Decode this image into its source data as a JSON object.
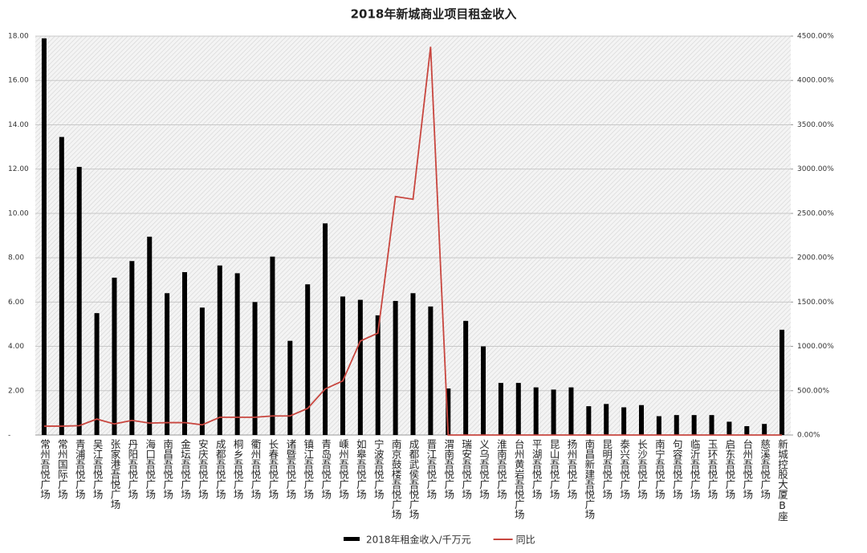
{
  "chart_data": {
    "type": "bar-line",
    "title": "2018年新城商业项目租金收入",
    "categories": [
      "常州吾悦广场",
      "常州国际广场",
      "青浦吾悦广场",
      "吴江吾悦广场",
      "张家港吾悦广场",
      "丹阳吾悦广场",
      "海口吾悦广场",
      "南昌吾悦广场",
      "金坛吾悦广场",
      "安庆吾悦广场",
      "成都吾悦广场",
      "桐乡吾悦广场",
      "衢州吾悦广场",
      "长春吾悦广场",
      "诸暨吾悦广场",
      "镇江吾悦广场",
      "青岛吾悦广场",
      "嵊州吾悦广场",
      "如皋吾悦广场",
      "宁波吾悦广场",
      "南京鼓楼吾悦广场",
      "成都武侯吾悦广场",
      "晋江吾悦广场",
      "渭南吾悦广场",
      "瑞安吾悦广场",
      "义乌吾悦广场",
      "淮南吾悦广场",
      "台州黄岩吾悦广场",
      "平湖吾悦广场",
      "昆山吾悦广场",
      "扬州吾悦广场",
      "南昌新建吾悦广场",
      "昆明吾悦广场",
      "泰兴吾悦广场",
      "长沙吾悦广场",
      "南宁吾悦广场",
      "句容吾悦广场",
      "临沂吾悦广场",
      "玉环吾悦广场",
      "启东吾悦广场",
      "台州吾悦广场",
      "慈溪吾悦广场",
      "新城控股大厦B座"
    ],
    "series": [
      {
        "name": "2018年租金收入/千万元",
        "color": "#000000",
        "kind": "bar",
        "values": [
          17.9,
          13.45,
          12.1,
          5.5,
          7.1,
          7.85,
          8.95,
          6.4,
          7.35,
          5.75,
          7.65,
          7.3,
          6.0,
          8.05,
          4.25,
          6.8,
          9.55,
          6.25,
          6.1,
          5.4,
          6.05,
          6.4,
          5.8,
          2.1,
          5.15,
          4.0,
          2.35,
          2.35,
          2.15,
          2.05,
          2.15,
          1.3,
          1.4,
          1.25,
          1.35,
          0.85,
          0.9,
          0.9,
          0.9,
          0.6,
          0.4,
          0.5,
          4.75
        ]
      },
      {
        "name": "同比",
        "color": "#c8463f",
        "kind": "line",
        "axis": "y2",
        "values": [
          100,
          100,
          105,
          180,
          125,
          165,
          135,
          140,
          140,
          115,
          200,
          200,
          200,
          215,
          215,
          300,
          520,
          610,
          1060,
          1150,
          2690,
          2660,
          4380,
          0,
          0,
          0,
          0,
          0,
          0,
          0,
          0,
          0,
          0,
          0,
          0,
          0,
          0,
          0,
          0,
          0,
          0,
          0,
          0
        ]
      }
    ],
    "ylim": [
      0,
      18
    ],
    "yticks": [
      {
        "value": 0,
        "label": "-"
      },
      {
        "value": 2,
        "label": "2.00"
      },
      {
        "value": 4,
        "label": "4.00"
      },
      {
        "value": 6,
        "label": "6.00"
      },
      {
        "value": 8,
        "label": "8.00"
      },
      {
        "value": 10,
        "label": "10.00"
      },
      {
        "value": 12,
        "label": "12.00"
      },
      {
        "value": 14,
        "label": "14.00"
      },
      {
        "value": 16,
        "label": "16.00"
      },
      {
        "value": 18,
        "label": "18.00"
      }
    ],
    "y2lim": [
      0,
      4500
    ],
    "y2ticks": [
      {
        "value": 0,
        "label": "0.00%"
      },
      {
        "value": 500,
        "label": "500.00%"
      },
      {
        "value": 1000,
        "label": "1000.00%"
      },
      {
        "value": 1500,
        "label": "1500.00%"
      },
      {
        "value": 2000,
        "label": "2000.00%"
      },
      {
        "value": 2500,
        "label": "2500.00%"
      },
      {
        "value": 3000,
        "label": "3000.00%"
      },
      {
        "value": 3500,
        "label": "3500.00%"
      },
      {
        "value": 4000,
        "label": "4000.00%"
      },
      {
        "value": 4500,
        "label": "4500.00%"
      }
    ],
    "grid": true
  }
}
